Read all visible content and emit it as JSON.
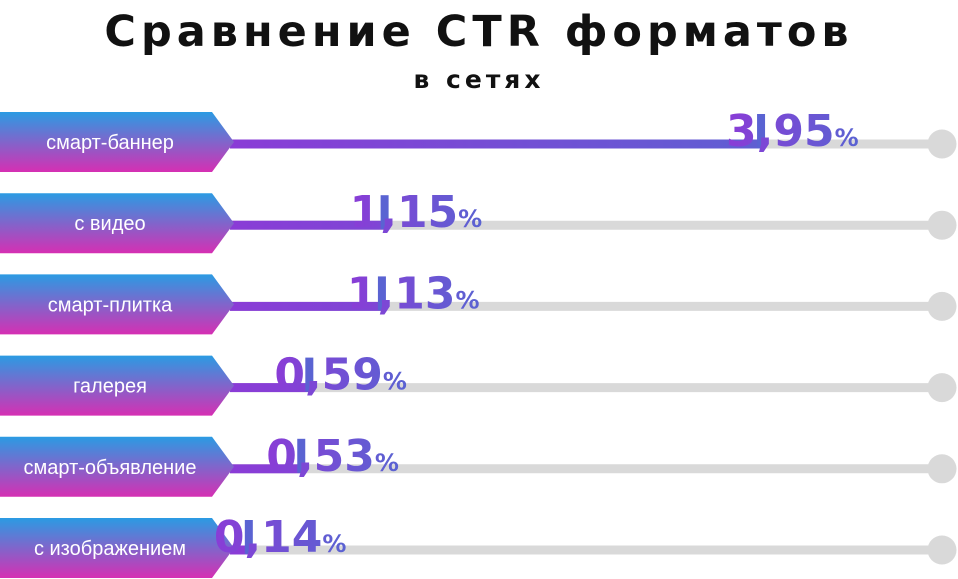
{
  "chart_data": {
    "type": "bar",
    "title": "Сравнение CTR форматов",
    "subtitle": "в сетях",
    "categories": [
      "смарт-баннер",
      "с видео",
      "смарт-плитка",
      "галерея",
      "смарт-объявление",
      "с изображением"
    ],
    "values": [
      3.95,
      1.15,
      1.13,
      0.59,
      0.53,
      0.14
    ],
    "value_labels": [
      "3,95",
      "1,15",
      "1,13",
      "0,59",
      "0,53",
      "0,14"
    ],
    "unit": "%",
    "xlim": [
      0,
      4.5
    ],
    "grid": false,
    "legend": "none"
  },
  "colors": {
    "tag_top": "#2b9be3",
    "tag_bottom": "#d62fb3",
    "bar_start": "#8a3cd6",
    "bar_end": "#5a63d2",
    "track": "#d9d9d9",
    "text_dark": "#111111"
  }
}
